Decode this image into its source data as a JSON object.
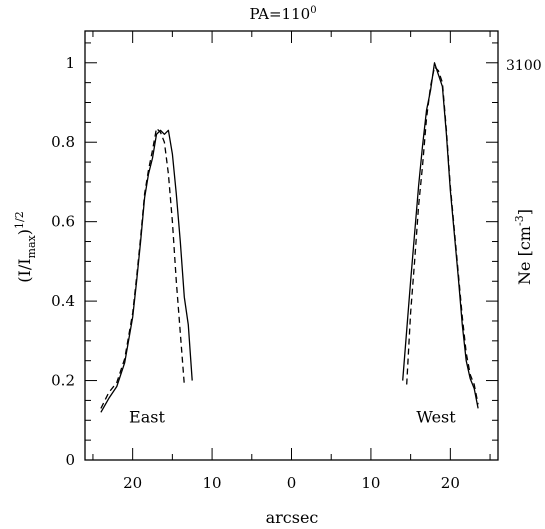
{
  "chart_data": {
    "type": "line",
    "title": "PA=110",
    "title_superscript": "0",
    "xlabel": "arcsec",
    "ylabel_main": "(I/I",
    "ylabel_sub": "max",
    "ylabel_close": ")",
    "ylabel_sup": "1/2",
    "right_label_main": "Ne [cm",
    "right_label_sup": "-3",
    "right_label_close": "]",
    "right_tick_label": "3100",
    "xlim": [
      -26,
      26
    ],
    "ylim": [
      0,
      1.08
    ],
    "x_ticks_major": [
      -20,
      -10,
      0,
      10,
      20
    ],
    "x_tick_labels": [
      "20",
      "10",
      "0",
      "10",
      "20"
    ],
    "y_ticks_major": [
      0,
      0.2,
      0.4,
      0.6,
      0.8,
      1
    ],
    "y_tick_labels": [
      "0",
      "0.2",
      "0.4",
      "0.6",
      "0.8",
      "1"
    ],
    "annotations": [
      {
        "text": "East",
        "x": -18.2,
        "y": 0.095
      },
      {
        "text": "West",
        "x": 18.2,
        "y": 0.095
      }
    ],
    "series": [
      {
        "style": "solid",
        "x": [
          -24.0,
          -23.0,
          -22.0,
          -21.0,
          -20.0,
          -19.5,
          -19.0,
          -18.5,
          -18.0,
          -17.5,
          -17.0,
          -16.5,
          -16.0,
          -15.5,
          -15.0,
          -14.5,
          -14.0,
          -13.5,
          -13.0,
          -12.5
        ],
        "y": [
          0.12,
          0.155,
          0.185,
          0.245,
          0.36,
          0.45,
          0.55,
          0.66,
          0.72,
          0.76,
          0.82,
          0.83,
          0.82,
          0.83,
          0.77,
          0.67,
          0.55,
          0.41,
          0.34,
          0.2
        ]
      },
      {
        "style": "dashed",
        "x": [
          -24.0,
          -23.0,
          -22.0,
          -21.0,
          -20.0,
          -19.5,
          -19.0,
          -18.5,
          -18.0,
          -17.5,
          -17.0,
          -16.5,
          -16.0,
          -15.5,
          -15.0,
          -14.5,
          -14.0,
          -13.5
        ],
        "y": [
          0.13,
          0.17,
          0.195,
          0.255,
          0.37,
          0.46,
          0.56,
          0.67,
          0.73,
          0.78,
          0.835,
          0.825,
          0.8,
          0.72,
          0.6,
          0.45,
          0.32,
          0.19
        ]
      },
      {
        "style": "solid",
        "x": [
          14.0,
          15.0,
          15.5,
          16.0,
          16.5,
          17.0,
          17.5,
          18.0,
          18.5,
          19.0,
          19.5,
          20.0,
          20.5,
          21.0,
          21.5,
          22.0,
          22.5,
          23.0,
          23.5
        ],
        "y": [
          0.2,
          0.45,
          0.57,
          0.69,
          0.79,
          0.88,
          0.93,
          1.0,
          0.97,
          0.94,
          0.82,
          0.68,
          0.57,
          0.46,
          0.34,
          0.25,
          0.205,
          0.18,
          0.13
        ]
      },
      {
        "style": "dashed",
        "x": [
          14.5,
          15.0,
          15.5,
          16.0,
          16.5,
          17.0,
          17.5,
          18.0,
          18.5,
          19.0,
          19.5,
          20.0,
          20.5,
          21.0,
          21.5,
          22.0,
          22.5,
          23.0,
          23.5
        ],
        "y": [
          0.19,
          0.37,
          0.5,
          0.64,
          0.74,
          0.86,
          0.94,
          0.99,
          0.98,
          0.95,
          0.83,
          0.69,
          0.58,
          0.47,
          0.36,
          0.27,
          0.215,
          0.19,
          0.14
        ]
      }
    ],
    "grid": false,
    "legend": "none",
    "colors": {
      "line": "#000000",
      "axes": "#000000",
      "background": "#ffffff"
    }
  }
}
